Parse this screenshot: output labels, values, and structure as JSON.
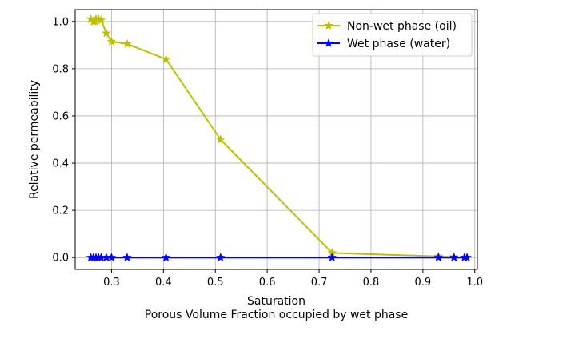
{
  "chart_data": {
    "type": "line",
    "title": "",
    "xlabel": "Saturation",
    "xlabel_line2": "Porous Volume Fraction occupied by wet phase",
    "ylabel": "Relative permeability",
    "xlim": [
      0.23,
      1.005
    ],
    "ylim": [
      -0.05,
      1.05
    ],
    "xticks": [
      0.3,
      0.4,
      0.5,
      0.6,
      0.7,
      0.8,
      0.9,
      1.0
    ],
    "xtick_labels": [
      "0.3",
      "0.4",
      "0.5",
      "0.6",
      "0.7",
      "0.8",
      "0.9",
      "1.0"
    ],
    "yticks": [
      0.0,
      0.2,
      0.4,
      0.6,
      0.8,
      1.0
    ],
    "ytick_labels": [
      "0.0",
      "0.2",
      "0.4",
      "0.6",
      "0.8",
      "1.0"
    ],
    "grid": true,
    "legend_position": "top-right",
    "marker": "star",
    "series": [
      {
        "name": "Non-wet phase (oil)",
        "color": "#bfbf00",
        "x": [
          0.26,
          0.265,
          0.27,
          0.268,
          0.275,
          0.28,
          0.29,
          0.3,
          0.33,
          0.405,
          0.51,
          0.725,
          0.93,
          0.96,
          0.98,
          0.985
        ],
        "y": [
          1.01,
          1.0,
          1.01,
          1.0,
          1.01,
          1.005,
          0.95,
          0.915,
          0.905,
          0.84,
          0.5,
          0.02,
          0.005,
          0.003,
          0.0,
          0.0
        ]
      },
      {
        "name": "Wet phase (water)",
        "color": "#0000ff",
        "x": [
          0.26,
          0.265,
          0.27,
          0.275,
          0.28,
          0.29,
          0.3,
          0.33,
          0.405,
          0.51,
          0.725,
          0.93,
          0.96,
          0.98,
          0.985
        ],
        "y": [
          0,
          0,
          0,
          0,
          0,
          0,
          0,
          0,
          0,
          0,
          0,
          0,
          0,
          0,
          0
        ]
      }
    ]
  }
}
